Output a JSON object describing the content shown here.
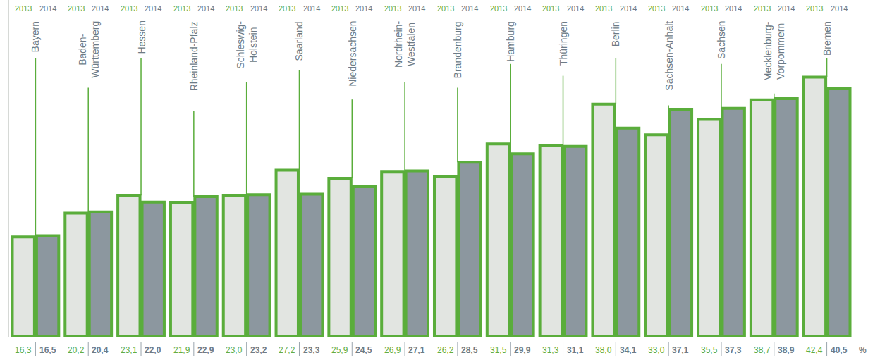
{
  "chart_data": {
    "type": "bar",
    "categories": [
      "Bayern",
      "Baden-Württemberg",
      "Hessen",
      "Rheinland-Pfalz",
      "Schleswig-Holstein",
      "Saarland",
      "Niedersachsen",
      "Nordrhein-Westfalen",
      "Brandenburg",
      "Hamburg",
      "Thüringen",
      "Berlin",
      "Sachsen-Anhalt",
      "Sachsen",
      "Mecklenburg-Vorpommern",
      "Bremen"
    ],
    "series": [
      {
        "name": "2013",
        "color": "#e2e5e1",
        "values": [
          16.3,
          20.2,
          23.1,
          21.9,
          23.0,
          27.2,
          25.9,
          26.9,
          26.2,
          31.5,
          31.3,
          38.0,
          33.0,
          35.5,
          38.7,
          42.4
        ],
        "value_labels": [
          "16,3",
          "20,2",
          "23,1",
          "21,9",
          "23,0",
          "27,2",
          "25,9",
          "26,9",
          "26,2",
          "31,5",
          "31,3",
          "38,0",
          "33,0",
          "35,5",
          "38,7",
          "42,4"
        ]
      },
      {
        "name": "2014",
        "color": "#8c979f",
        "values": [
          16.5,
          20.4,
          22.0,
          22.9,
          23.2,
          23.3,
          24.5,
          27.1,
          28.5,
          29.9,
          31.1,
          34.1,
          37.1,
          37.3,
          38.9,
          40.5
        ],
        "value_labels": [
          "16,5",
          "20,4",
          "22,0",
          "22,9",
          "23,2",
          "23,3",
          "24,5",
          "27,1",
          "28,5",
          "29,9",
          "31,1",
          "34,1",
          "37,1",
          "37,3",
          "38,9",
          "40,5"
        ]
      }
    ],
    "annotations": [
      "%"
    ],
    "ylim": [
      0,
      55
    ],
    "data_labels": true,
    "tick_labels": false,
    "grid": false
  }
}
